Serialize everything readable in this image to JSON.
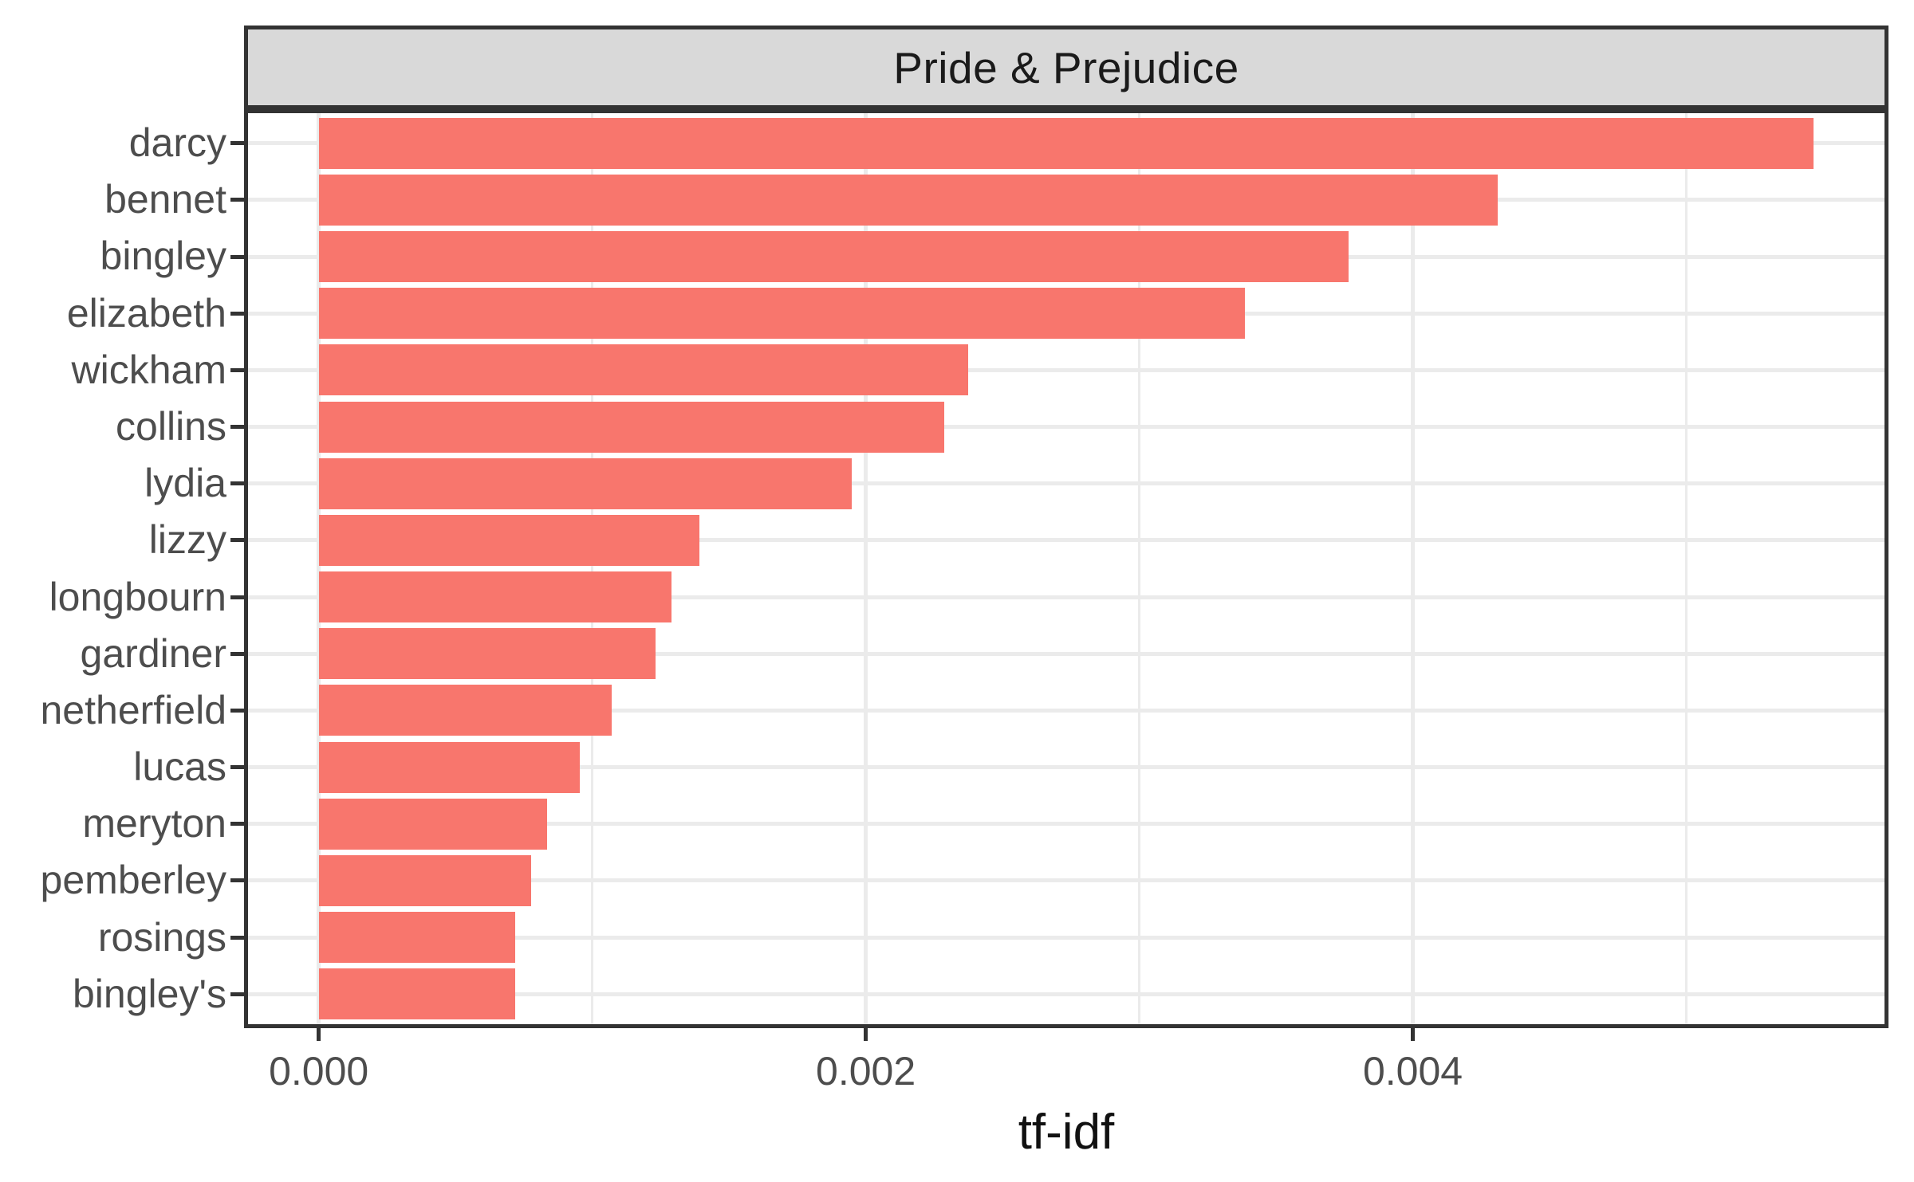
{
  "chart_data": {
    "type": "bar",
    "orientation": "horizontal",
    "title": "Pride & Prejudice",
    "xlabel": "tf-idf",
    "ylabel": "",
    "categories": [
      "darcy",
      "bennet",
      "bingley",
      "elizabeth",
      "wickham",
      "collins",
      "lydia",
      "lizzy",
      "longbourn",
      "gardiner",
      "netherfield",
      "lucas",
      "meryton",
      "pemberley",
      "rosings",
      "bingley's"
    ],
    "values": [
      0.005466,
      0.004309,
      0.003764,
      0.003386,
      0.002374,
      0.002286,
      0.001949,
      0.001392,
      0.001289,
      0.001232,
      0.001071,
      0.000954,
      0.000834,
      0.000776,
      0.000719,
      0.000717
    ],
    "x_ticks": {
      "labels": [
        "0.000",
        "0.002",
        "0.004"
      ],
      "values": [
        0,
        0.002,
        0.004
      ]
    },
    "x_minor_gridlines": [
      0.001,
      0.003,
      0.005
    ],
    "xlim": [
      -0.000273,
      0.005739
    ],
    "bar_category_width": 0.9,
    "grid": true,
    "legend": false,
    "colors": {
      "bar": "#F8766D",
      "strip_background": "#D9D9D9",
      "panel_border": "#333333",
      "gridline": "#EBEBEB",
      "axis_text": "#4D4D4D",
      "title_text": "#1A1A1A"
    }
  }
}
